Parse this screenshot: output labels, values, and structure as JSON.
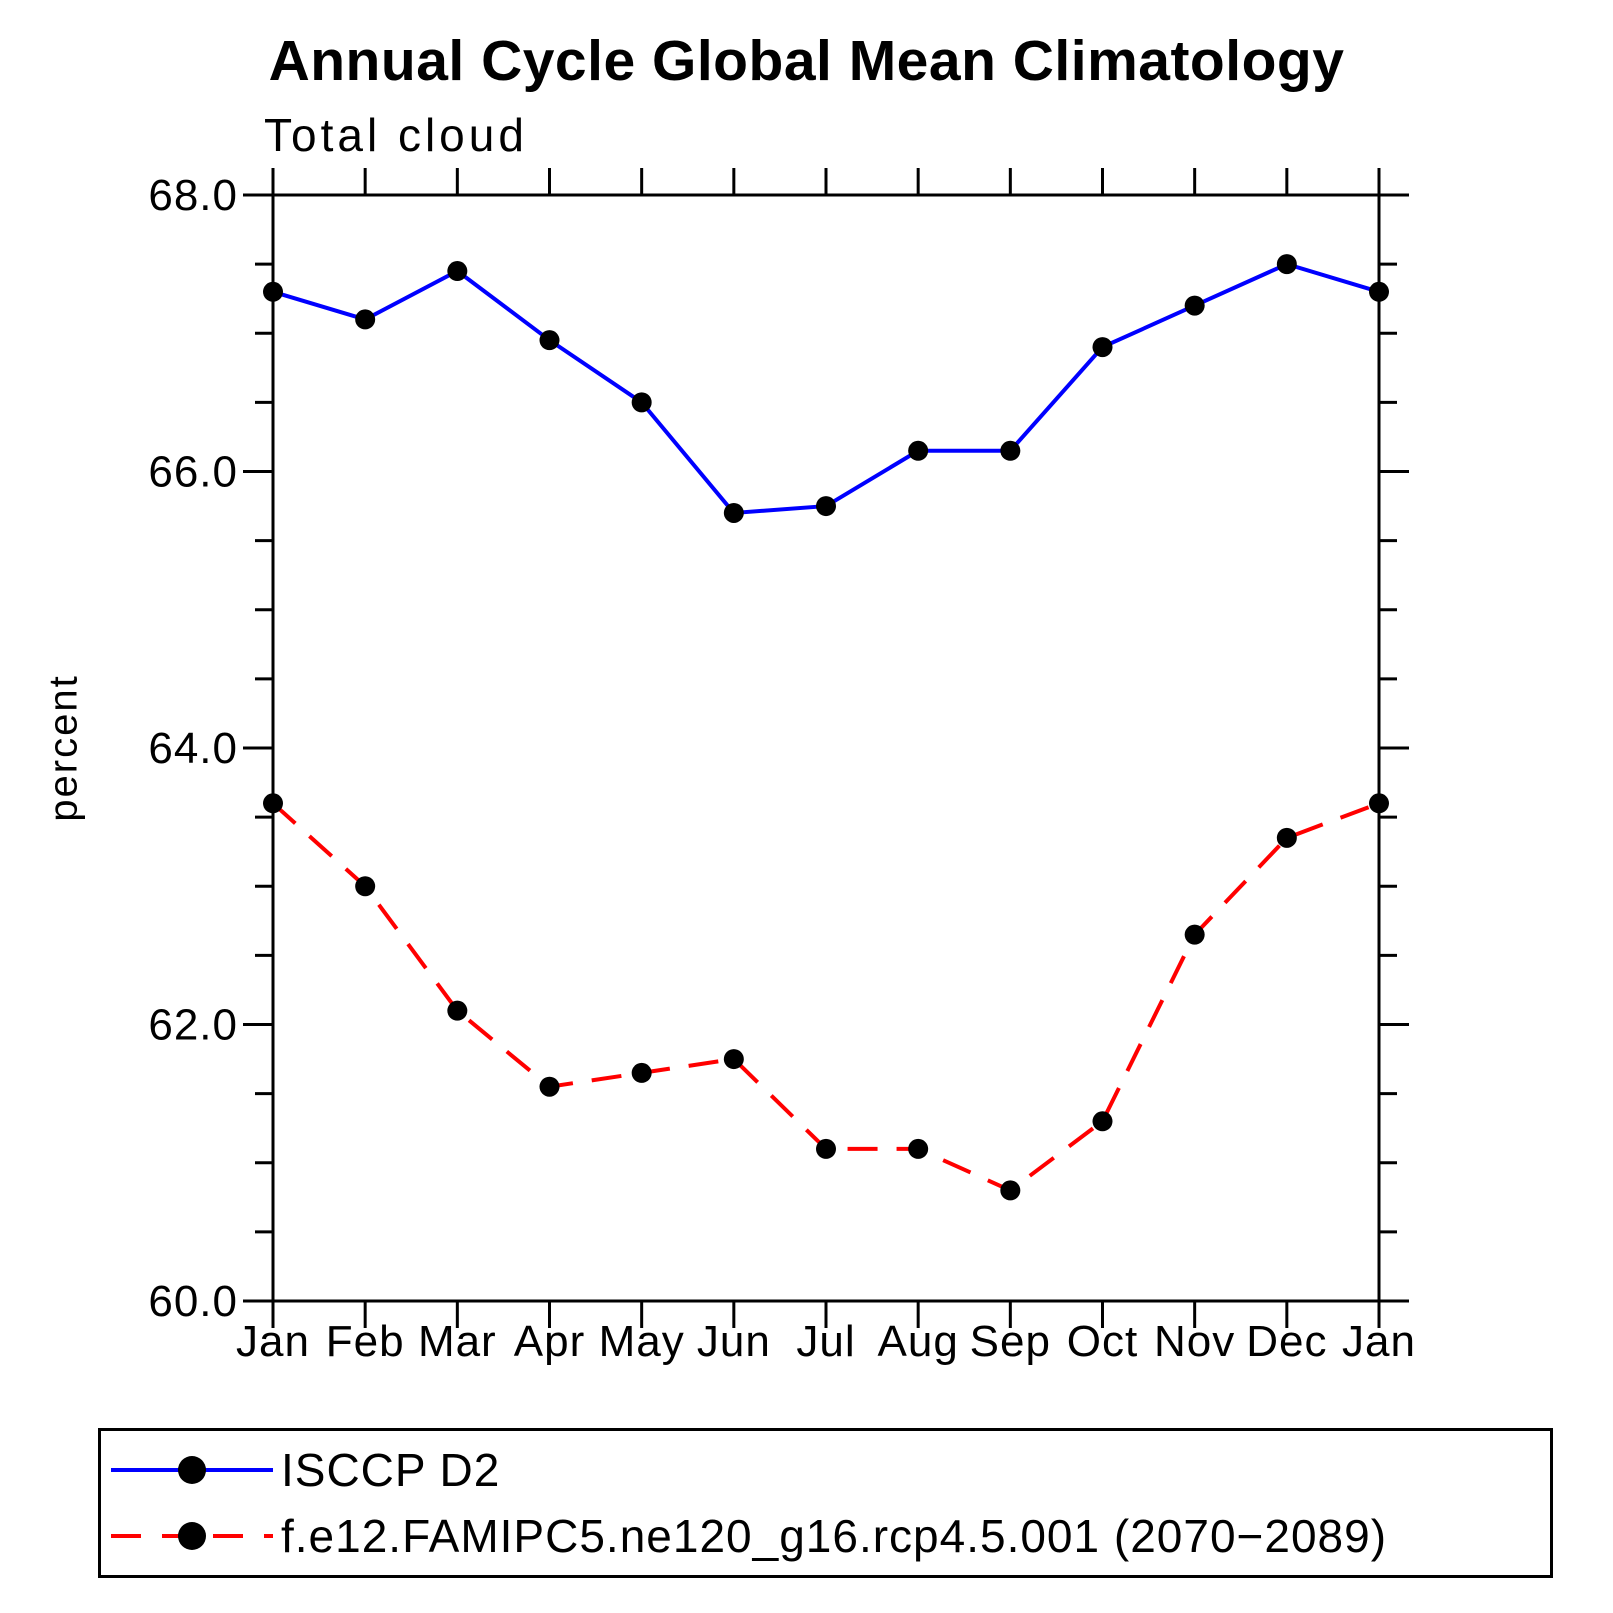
{
  "title": "Annual Cycle Global Mean Climatology",
  "subtitle": "Total cloud",
  "y_axis_label": "percent",
  "colors": {
    "series1": "#0000ff",
    "series2": "#ff0000",
    "marker": "#000000",
    "axis": "#000000"
  },
  "chart_data": {
    "type": "line",
    "title": "Annual Cycle Global Mean Climatology",
    "subtitle": "Total cloud",
    "ylabel": "percent",
    "categories": [
      "Jan",
      "Feb",
      "Mar",
      "Apr",
      "May",
      "Jun",
      "Jul",
      "Aug",
      "Sep",
      "Oct",
      "Nov",
      "Dec",
      "Jan"
    ],
    "ylim": [
      60.0,
      68.0
    ],
    "ytick_interval": 2.0,
    "ytick_minor_interval": 0.5,
    "ytick_labels": [
      "60.0",
      "62.0",
      "64.0",
      "66.0",
      "68.0"
    ],
    "grid": false,
    "legend_position": "bottom",
    "marker": {
      "color": "#000000"
    },
    "series": [
      {
        "name": "ISCCP D2",
        "color": "#0000ff",
        "line_style": "solid",
        "values": [
          67.3,
          67.1,
          67.45,
          66.95,
          66.5,
          65.7,
          65.75,
          66.15,
          66.15,
          66.9,
          67.2,
          67.5,
          67.3
        ]
      },
      {
        "name": "f.e12.FAMIPC5.ne120_g16.rcp4.5.001 (2070−2089)",
        "color": "#ff0000",
        "line_style": "dashed",
        "values": [
          63.6,
          63.0,
          62.1,
          61.55,
          61.65,
          61.75,
          61.1,
          61.1,
          60.8,
          61.3,
          62.65,
          63.35,
          63.6
        ]
      }
    ]
  }
}
